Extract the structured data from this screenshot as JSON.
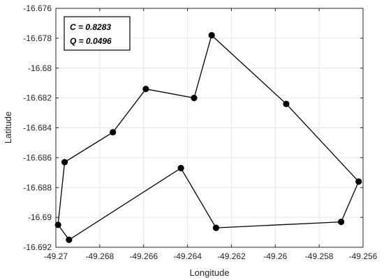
{
  "chart_data": {
    "type": "line",
    "title": "",
    "xlabel": "Longitude",
    "ylabel": "Latitude",
    "xlim": [
      -49.27,
      -49.256
    ],
    "ylim": [
      -16.692,
      -16.676
    ],
    "xticks": [
      -49.27,
      -49.268,
      -49.266,
      -49.264,
      -49.262,
      -49.26,
      -49.258,
      -49.256
    ],
    "yticks": [
      -16.676,
      -16.678,
      -16.68,
      -16.682,
      -16.684,
      -16.686,
      -16.688,
      -16.69,
      -16.692
    ],
    "xtick_labels": [
      "-49.27",
      "-49.268",
      "-49.266",
      "-49.264",
      "-49.262",
      "-49.26",
      "-49.258",
      "-49.256"
    ],
    "ytick_labels": [
      "-16.676",
      "-16.678",
      "-16.68",
      "-16.682",
      "-16.684",
      "-16.686",
      "-16.688",
      "-16.69",
      "-16.692"
    ],
    "grid": true,
    "annotations": [
      "C = 0.8283",
      "Q = 0.0496"
    ],
    "series": [
      {
        "closed": true,
        "color": "#000000",
        "x": [
          -49.2629,
          -49.2637,
          -49.2659,
          -49.2674,
          -49.2696,
          -49.2699,
          -49.2694,
          -49.2643,
          -49.2627,
          -49.257,
          -49.2562,
          -49.2595
        ],
        "y": [
          -16.6778,
          -16.682,
          -16.6814,
          -16.6843,
          -16.6863,
          -16.6905,
          -16.6915,
          -16.6867,
          -16.6907,
          -16.6903,
          -16.6876,
          -16.6824
        ]
      }
    ]
  }
}
